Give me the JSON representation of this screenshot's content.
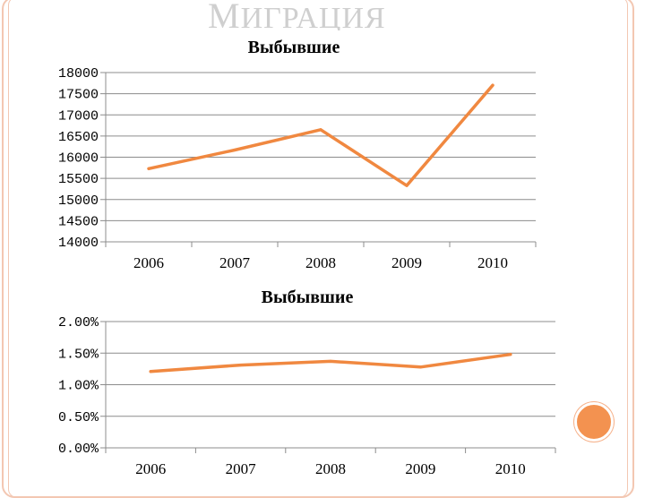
{
  "slide": {
    "title_cap": "М",
    "title_rest": "ИГРАЦИЯ"
  },
  "colors": {
    "line": "#f08840",
    "frame": "#f3c7b2",
    "accent": "#f39250"
  },
  "chart_data": [
    {
      "type": "line",
      "title": "Выбывшие",
      "categories": [
        "2006",
        "2007",
        "2008",
        "2009",
        "2010"
      ],
      "values": [
        15730,
        16170,
        16650,
        15330,
        17700
      ],
      "ylim": [
        14000,
        18000
      ],
      "yticks": [
        14000,
        14500,
        15000,
        15500,
        16000,
        16500,
        17000,
        17500,
        18000
      ],
      "ytick_labels": [
        "14000",
        "14500",
        "15000",
        "15500",
        "16000",
        "16500",
        "17000",
        "17500",
        "18000"
      ],
      "grid": true,
      "legend": "none"
    },
    {
      "type": "line",
      "title": "Выбывшие",
      "categories": [
        "2006",
        "2007",
        "2008",
        "2009",
        "2010"
      ],
      "values": [
        1.21,
        1.31,
        1.37,
        1.28,
        1.48
      ],
      "ylim": [
        0,
        2
      ],
      "yticks": [
        0,
        0.5,
        1.0,
        1.5,
        2.0
      ],
      "ytick_labels": [
        "0.00%",
        "0.50%",
        "1.00%",
        "1.50%",
        "2.00%"
      ],
      "grid": true,
      "legend": "none"
    }
  ]
}
